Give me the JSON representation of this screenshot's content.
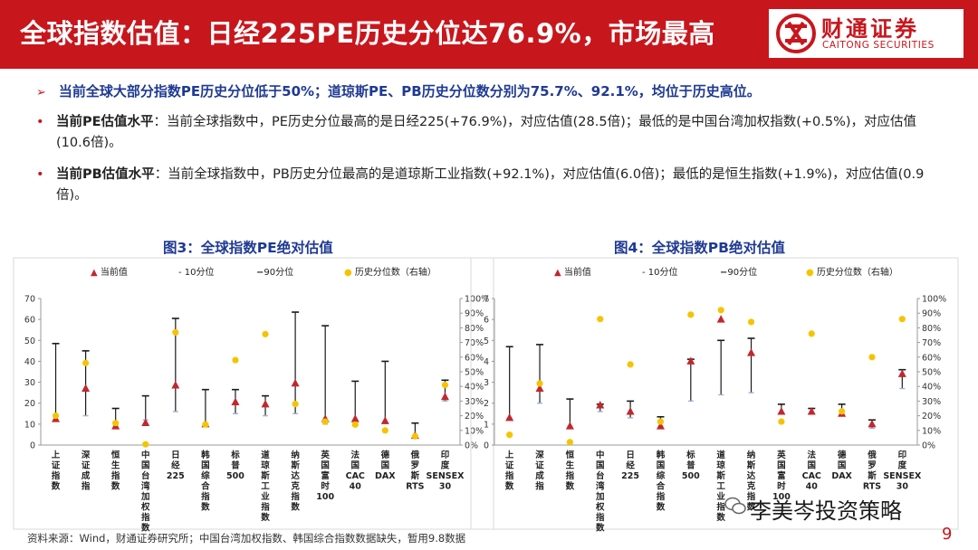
{
  "header": {
    "title": "全球指数估值：日经225PE历史分位达76.9%，市场最高",
    "logo_cn": "财通证券",
    "logo_en": "CAITONG SECURITIES",
    "color": "#c8161d"
  },
  "highlight": "当前全球大部分指数PE历史分位低于50%；道琼斯PE、PB历史分位数分别为75.7%、92.1%，均位于历史高位。",
  "bullets": [
    {
      "label": "当前PE估值水平",
      "text": "：当前全球指数中，PE历史分位最高的是日经225(+76.9%)，对应估值(28.5倍)；最低的是中国台湾加权指数(+0.5%)，对应估值(10.6倍)。"
    },
    {
      "label": "当前PB估值水平",
      "text": "：当前全球指数中，PB历史分位最高的是道琼斯工业指数(+92.1%)，对应估值(6.0倍)；最低的是恒生指数(+1.9%)，对应估值(0.9倍)。"
    }
  ],
  "legend": {
    "current": "当前值",
    "p10": "10分位",
    "p90": "90分位",
    "pct": "历史分位数（右轴）"
  },
  "colors": {
    "current": "#c0282d",
    "pct": "#f5c400",
    "line": "#1a1a1a",
    "axis": "#999999"
  },
  "chart_data": [
    {
      "type": "scatter",
      "title": "图3：全球指数PE绝对估值",
      "categories": [
        "上证指数",
        "深证成指",
        "恒生指数",
        "中国台湾加权指数",
        "日经225",
        "韩国综合指数",
        "标普500",
        "道琼斯工业指数",
        "纳斯达克指数",
        "英国富时100",
        "法国CAC40",
        "德国DAX",
        "俄罗斯RTS",
        "印度SENSEX30"
      ],
      "ylim": [
        0,
        70
      ],
      "yticks": [
        0,
        10,
        20,
        30,
        40,
        50,
        60,
        70
      ],
      "y2lim": [
        0,
        100
      ],
      "y2ticks": [
        "0%",
        "10%",
        "20%",
        "30%",
        "40%",
        "50%",
        "60%",
        "70%",
        "80%",
        "90%",
        "100%"
      ],
      "series": [
        {
          "name": "当前值",
          "values": [
            12.5,
            27,
            9,
            10.6,
            28.5,
            10,
            20.5,
            19.5,
            29.5,
            12.5,
            12.5,
            11.5,
            4.5,
            23
          ]
        },
        {
          "name": "10分位",
          "values": [
            12,
            14,
            9,
            12,
            16,
            9,
            15,
            14,
            15,
            10,
            10,
            11,
            3.5,
            21
          ]
        },
        {
          "name": "90分位",
          "values": [
            48.5,
            45,
            17.5,
            23.5,
            60.5,
            26.5,
            26.5,
            23.5,
            63.5,
            57,
            30.5,
            40,
            10.5,
            31
          ]
        },
        {
          "name": "历史分位数（右轴）",
          "values": [
            0.2,
            0.56,
            0.15,
            0.005,
            0.769,
            0.14,
            0.58,
            0.757,
            0.28,
            0.16,
            0.14,
            0.1,
            0.06,
            0.41
          ]
        }
      ]
    },
    {
      "type": "scatter",
      "title": "图4：全球指数PB绝对估值",
      "categories": [
        "上证指数",
        "深证成指",
        "恒生指数",
        "中国台湾加权指数",
        "日经225",
        "韩国综合指数",
        "标普500",
        "道琼斯工业指数",
        "纳斯达克指数",
        "英国富时100",
        "法国CAC40",
        "德国DAX",
        "俄罗斯RTS",
        "印度SENSEX30"
      ],
      "ylim": [
        0,
        7
      ],
      "yticks": [
        0,
        1,
        2,
        3,
        4,
        5,
        6,
        7
      ],
      "y2lim": [
        0,
        100
      ],
      "y2ticks": [
        "0%",
        "10%",
        "20%",
        "30%",
        "40%",
        "50%",
        "60%",
        "70%",
        "80%",
        "90%",
        "100%"
      ],
      "series": [
        {
          "name": "当前值",
          "values": [
            1.3,
            2.7,
            0.9,
            1.9,
            1.6,
            0.9,
            4.0,
            6.0,
            4.4,
            1.6,
            1.6,
            1.5,
            1.0,
            3.4
          ]
        },
        {
          "name": "10分位",
          "values": [
            1.3,
            2.0,
            0.9,
            1.6,
            1.3,
            0.9,
            2.1,
            2.4,
            2.5,
            1.5,
            1.5,
            1.4,
            0.8,
            2.7
          ]
        },
        {
          "name": "90分位",
          "values": [
            4.7,
            4.8,
            2.2,
            1.95,
            2.1,
            1.35,
            4.1,
            5.0,
            5.1,
            1.95,
            1.75,
            1.95,
            1.2,
            3.6
          ]
        },
        {
          "name": "历史分位数（右轴）",
          "values": [
            0.07,
            0.42,
            0.02,
            0.86,
            0.55,
            0.16,
            0.89,
            0.921,
            0.84,
            0.16,
            0.76,
            0.23,
            0.6,
            0.86
          ]
        }
      ]
    }
  ],
  "footer": "资料来源：Wind，财通证券研究所；中国台湾加权指数、韩国综合指数数据缺失，暂用9.8数据",
  "watermark": "李美岑投资策略",
  "page_number": "9"
}
